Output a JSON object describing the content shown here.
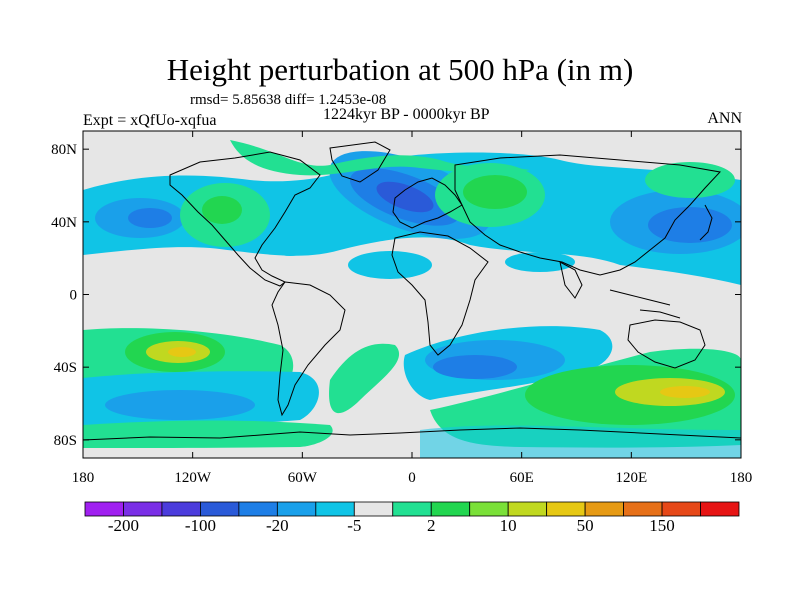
{
  "title": "Height perturbation at 500 hPa (in m)",
  "stats": "rmsd= 5.85638 diff= 1.2453e-08",
  "experiment": "Expt = xQfUo-xqfua",
  "period": "1224kyr BP - 0000kyr BP",
  "season": "ANN",
  "lat_ticks": [
    "80N",
    "40N",
    "0",
    "40S",
    "80S"
  ],
  "lon_ticks": [
    "180",
    "120W",
    "60W",
    "0",
    "60E",
    "120E",
    "180"
  ],
  "colorbar": {
    "labels": [
      "-200",
      "-100",
      "-20",
      "-5",
      "2",
      "10",
      "50",
      "150"
    ],
    "colors": [
      "#a020f0",
      "#7a2ee6",
      "#4b3cdc",
      "#2a5ad8",
      "#1e7ee6",
      "#1aa0ea",
      "#10c4e6",
      "#e6e6e6",
      "#22e092",
      "#22d650",
      "#7ae038",
      "#c0d820",
      "#e6c814",
      "#e69a14",
      "#e67018",
      "#e64818",
      "#e61414"
    ]
  },
  "map": {
    "neutral_color": "#e6e6e6",
    "coast_color": "#000000"
  }
}
